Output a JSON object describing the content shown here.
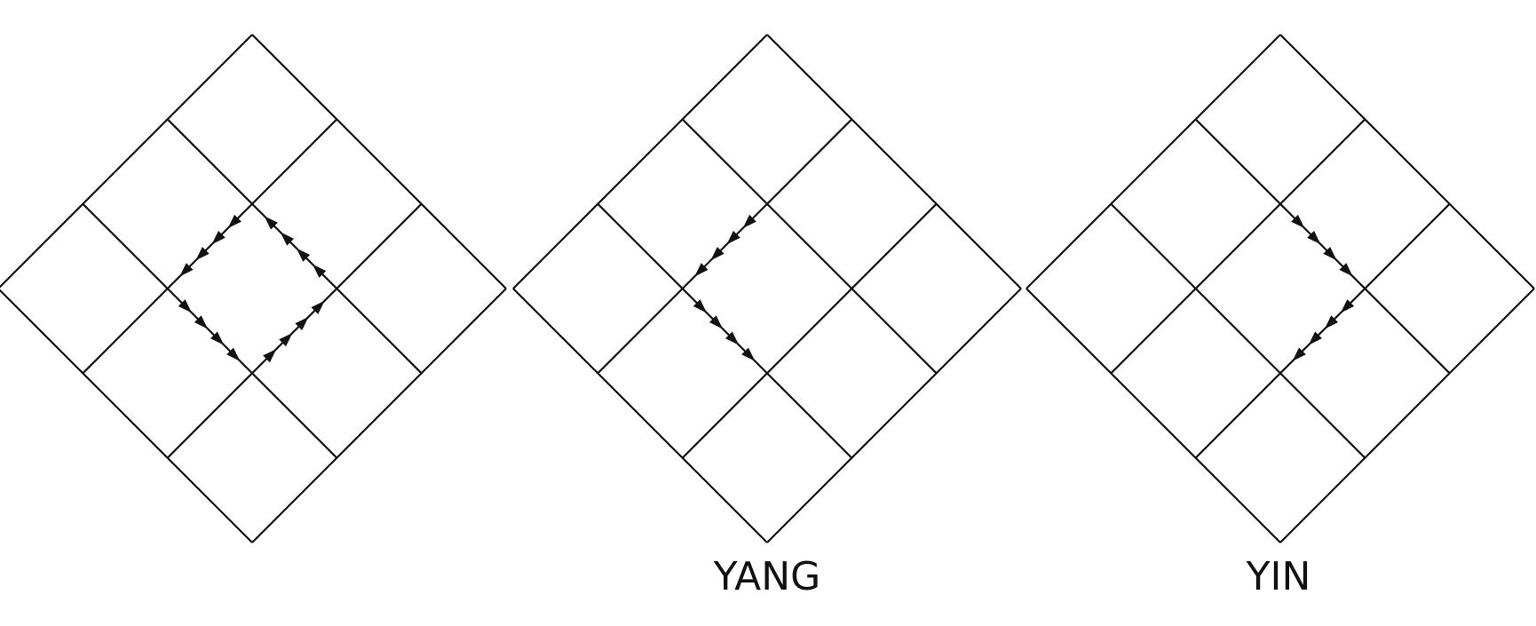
{
  "diagrams": [
    {
      "label": "",
      "grid_size": 3,
      "arrow_path": "full-loop",
      "arrow_segments": [
        {
          "from": [
            1,
            1
          ],
          "to": [
            1,
            2
          ],
          "direction": "forward"
        },
        {
          "from": [
            1,
            2
          ],
          "to": [
            2,
            2
          ],
          "direction": "forward"
        },
        {
          "from": [
            2,
            2
          ],
          "to": [
            2,
            1
          ],
          "direction": "forward"
        },
        {
          "from": [
            2,
            1
          ],
          "to": [
            1,
            1
          ],
          "direction": "forward"
        }
      ]
    },
    {
      "label": "YANG",
      "grid_size": 3,
      "arrow_path": "upper-half",
      "arrow_segments": [
        {
          "from": [
            1,
            1
          ],
          "to": [
            1,
            2
          ],
          "direction": "toward-left"
        },
        {
          "from": [
            1,
            2
          ],
          "to": [
            2,
            2
          ],
          "direction": "toward-right"
        }
      ]
    },
    {
      "label": "YIN",
      "grid_size": 3,
      "arrow_path": "lower-half",
      "arrow_segments": [
        {
          "from": [
            1,
            1
          ],
          "to": [
            2,
            1
          ],
          "direction": "toward-bottom"
        },
        {
          "from": [
            2,
            2
          ],
          "to": [
            2,
            1
          ],
          "direction": "toward-bottom"
        }
      ]
    }
  ],
  "colors": {
    "line": "#111111",
    "background": "#ffffff"
  }
}
